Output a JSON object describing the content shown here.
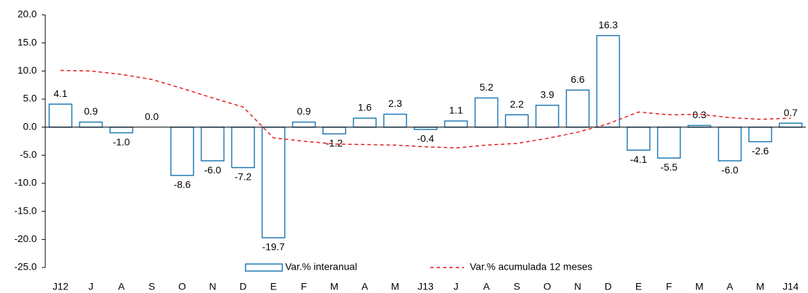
{
  "chart_data": {
    "type": "bar",
    "categories": [
      "J12",
      "J",
      "A",
      "S",
      "O",
      "N",
      "D",
      "E",
      "F",
      "M",
      "A",
      "M",
      "J13",
      "J",
      "A",
      "S",
      "O",
      "N",
      "D",
      "E",
      "F",
      "M",
      "A",
      "M",
      "J14"
    ],
    "series": [
      {
        "name": "Var.% interanual",
        "type": "bar",
        "color": "#1f78b4",
        "values": [
          4.1,
          0.9,
          -1.0,
          0.0,
          -8.6,
          -6.0,
          -7.2,
          -19.7,
          0.9,
          -1.2,
          1.6,
          2.3,
          -0.4,
          1.1,
          5.2,
          2.2,
          3.9,
          6.6,
          16.3,
          -4.1,
          -5.5,
          0.3,
          -6.0,
          -2.6,
          0.7
        ],
        "value_labels": [
          "4.1",
          "0.9",
          "-1.0",
          "0.0",
          "-8.6",
          "-6.0",
          "-7.2",
          "-19.7",
          "0.9",
          "-1.2",
          "1.6",
          "2.3",
          "-0.4",
          "1.1",
          "5.2",
          "2.2",
          "3.9",
          "6.6",
          "16.3",
          "-4.1",
          "-5.5",
          "0.3",
          "-6.0",
          "-2.6",
          "0.7"
        ]
      },
      {
        "name": "Var.% acumulada 12 meses",
        "type": "line",
        "color": "#e31a1c",
        "values": [
          10.1,
          10.0,
          9.4,
          8.5,
          6.9,
          5.2,
          3.6,
          -1.9,
          -2.5,
          -3.0,
          -3.1,
          -3.2,
          -3.5,
          -3.7,
          -3.2,
          -2.9,
          -2.0,
          -0.9,
          0.6,
          2.7,
          2.2,
          2.3,
          1.7,
          1.4,
          1.6
        ]
      }
    ],
    "ylim": [
      -25,
      20
    ],
    "yticks": [
      {
        "value": -25,
        "label": "-25.0"
      },
      {
        "value": -20,
        "label": "-20.0"
      },
      {
        "value": -15,
        "label": "-15.0"
      },
      {
        "value": -10,
        "label": "-10.0"
      },
      {
        "value": -5,
        "label": "-5.0"
      },
      {
        "value": 0,
        "label": "0.0"
      },
      {
        "value": 5,
        "label": "5.0"
      },
      {
        "value": 10,
        "label": "10.0"
      },
      {
        "value": 15,
        "label": "15.0"
      },
      {
        "value": 20,
        "label": "20.0"
      }
    ],
    "legend": "bottom"
  }
}
